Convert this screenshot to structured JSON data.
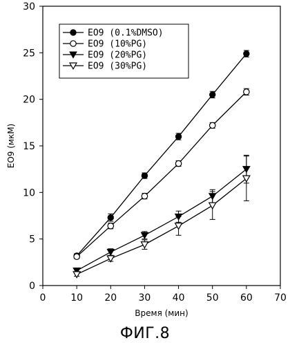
{
  "chart_data": {
    "type": "line",
    "title": "",
    "xlabel": "Время (мин)",
    "ylabel": "EO9 (мкМ)",
    "xlim": [
      0,
      70
    ],
    "ylim": [
      0,
      30
    ],
    "x_ticks": [
      "0",
      "10",
      "20",
      "30",
      "40",
      "50",
      "60",
      "70"
    ],
    "y_ticks": [
      "0",
      "5",
      "10",
      "15",
      "20",
      "25",
      "30"
    ],
    "grid": false,
    "legend_position": "top-left",
    "x": [
      10,
      20,
      30,
      40,
      50,
      60
    ],
    "series": [
      {
        "name": "EO9 (0.1%DMSO)",
        "marker": "filled-circle",
        "values": [
          3.2,
          7.3,
          11.8,
          16.0,
          20.5,
          24.9
        ],
        "errors": [
          0.2,
          0.4,
          0.3,
          0.35,
          0.35,
          0.35
        ]
      },
      {
        "name": "EO9 (10%PG)",
        "marker": "open-circle",
        "values": [
          3.1,
          6.4,
          9.6,
          13.1,
          17.2,
          20.8
        ],
        "errors": [
          0.2,
          0.3,
          0.3,
          0.3,
          0.3,
          0.35
        ]
      },
      {
        "name": "EO9 (20%PG)",
        "marker": "filled-triangle-down",
        "values": [
          1.6,
          3.6,
          5.4,
          7.4,
          9.6,
          12.5
        ],
        "errors": [
          0.2,
          0.35,
          0.4,
          0.6,
          0.7,
          1.5
        ]
      },
      {
        "name": "EO9 (30%PG)",
        "marker": "open-triangle-down",
        "values": [
          1.2,
          2.9,
          4.4,
          6.4,
          8.6,
          11.5
        ],
        "errors": [
          0.2,
          0.3,
          0.5,
          1.0,
          1.5,
          2.4
        ]
      }
    ]
  },
  "caption": "ФИГ.8",
  "colors": {
    "ink": "#000000",
    "background": "#ffffff"
  }
}
